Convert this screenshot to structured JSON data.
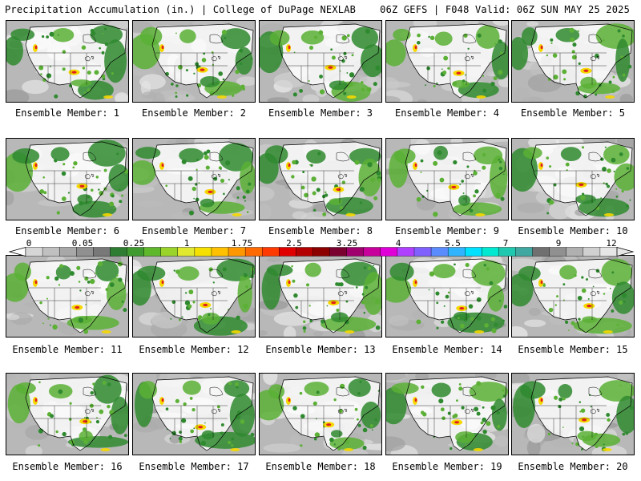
{
  "header": {
    "left_title": "Precipitation Accumulation (in.) | College of DuPage NEXLAB",
    "right_title": "06Z GEFS | F048 Valid: 06Z SUN MAY 25 2025"
  },
  "caption_prefix": "Ensemble Member:",
  "panels": [
    {
      "member": 1,
      "caption": "Ensemble Member: 1"
    },
    {
      "member": 2,
      "caption": "Ensemble Member: 2"
    },
    {
      "member": 3,
      "caption": "Ensemble Member: 3"
    },
    {
      "member": 4,
      "caption": "Ensemble Member: 4"
    },
    {
      "member": 5,
      "caption": "Ensemble Member: 5"
    },
    {
      "member": 6,
      "caption": "Ensemble Member: 6"
    },
    {
      "member": 7,
      "caption": "Ensemble Member: 7"
    },
    {
      "member": 8,
      "caption": "Ensemble Member: 8"
    },
    {
      "member": 9,
      "caption": "Ensemble Member: 9"
    },
    {
      "member": 10,
      "caption": "Ensemble Member: 10"
    },
    {
      "member": 11,
      "caption": "Ensemble Member: 11"
    },
    {
      "member": 12,
      "caption": "Ensemble Member: 12"
    },
    {
      "member": 13,
      "caption": "Ensemble Member: 13"
    },
    {
      "member": 14,
      "caption": "Ensemble Member: 14"
    },
    {
      "member": 15,
      "caption": "Ensemble Member: 15"
    },
    {
      "member": 16,
      "caption": "Ensemble Member: 16"
    },
    {
      "member": 17,
      "caption": "Ensemble Member: 17"
    },
    {
      "member": 18,
      "caption": "Ensemble Member: 18"
    },
    {
      "member": 19,
      "caption": "Ensemble Member: 19"
    },
    {
      "member": 20,
      "caption": "Ensemble Member: 20"
    }
  ],
  "colorbar": {
    "labels": [
      "0",
      "0.05",
      "0.25",
      "1",
      "1.75",
      "2.5",
      "3.25",
      "4",
      "5.5",
      "7",
      "9",
      "12"
    ],
    "colors": [
      "#d6d6d6",
      "#c0c0c0",
      "#a8a8a8",
      "#909090",
      "#787878",
      "#2e7d32",
      "#3f9b2f",
      "#5fb82b",
      "#9ad42b",
      "#e0e830",
      "#f5e000",
      "#ffc000",
      "#ff9800",
      "#ff6a00",
      "#ff3a00",
      "#e00000",
      "#b40000",
      "#8c0000",
      "#7a0030",
      "#a0006e",
      "#c8009c",
      "#e000d8",
      "#b040ff",
      "#8060ff",
      "#5a8cff",
      "#30b4ff",
      "#00e0ff",
      "#00e8d0",
      "#20c8b0",
      "#40a8a0",
      "#707070",
      "#909090",
      "#b0b0b0",
      "#d0d0d0",
      "#e6e6e6"
    ]
  },
  "map_colors": {
    "ocean_gray": "#b8b8b8",
    "dry_white": "#ffffff",
    "light_precip": "#5bb035",
    "moderate_precip": "#2f8a2f",
    "heavy_precip": "#f5d800",
    "very_heavy_precip": "#e02020",
    "outline": "#000000"
  }
}
